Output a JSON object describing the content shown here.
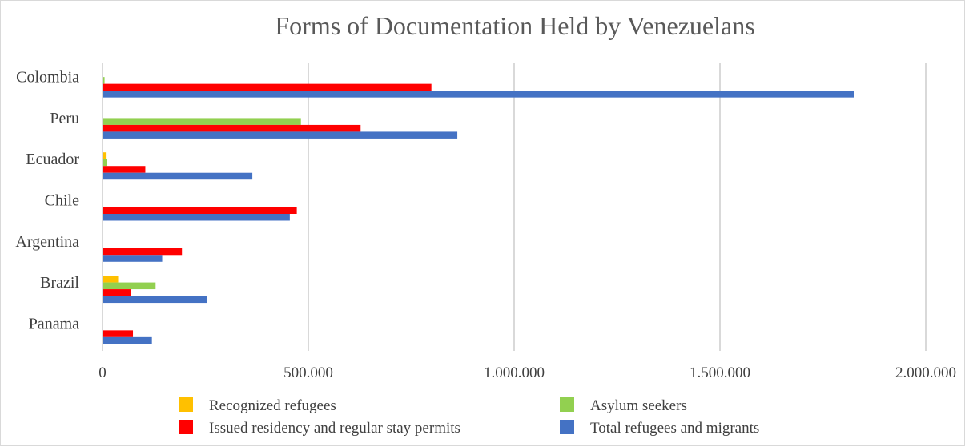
{
  "chart_data": {
    "type": "bar",
    "orientation": "horizontal",
    "title": "Forms of Documentation Held by Venezuelans",
    "categories": [
      "Colombia",
      "Peru",
      "Ecuador",
      "Chile",
      "Argentina",
      "Brazil",
      "Panama"
    ],
    "series": [
      {
        "name": "Recognized refugees",
        "color": "#ffc000",
        "values": [
          0,
          0,
          8000,
          0,
          0,
          38000,
          0
        ]
      },
      {
        "name": "Asylum seekers",
        "color": "#92d050",
        "values": [
          5000,
          482000,
          10000,
          0,
          0,
          129000,
          0
        ]
      },
      {
        "name": "Issued residency and regular stay permits",
        "color": "#ff0000",
        "values": [
          799000,
          627000,
          104000,
          472000,
          193000,
          70000,
          74000
        ]
      },
      {
        "name": "Total refugees and migrants",
        "color": "#4472c4",
        "values": [
          1825000,
          862000,
          364000,
          455000,
          145000,
          253000,
          120000
        ]
      }
    ],
    "xlim": [
      0,
      2000000
    ],
    "xticks": [
      0,
      500000,
      1000000,
      1500000,
      2000000
    ],
    "xtick_labels": [
      "0",
      "500.000",
      "1.000.000",
      "1.500.000",
      "2.000.000"
    ],
    "grid": true,
    "legend_position": "bottom"
  }
}
